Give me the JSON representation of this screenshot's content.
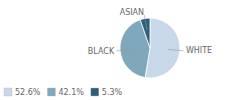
{
  "chart_data": {
    "type": "pie",
    "categories": [
      "WHITE",
      "BLACK",
      "ASIAN"
    ],
    "values": [
      52.6,
      42.1,
      5.3
    ],
    "value_labels": [
      "52.6%",
      "42.1%",
      "5.3%"
    ],
    "colors": [
      "#c8d8e8",
      "#7fa8bc",
      "#2c5f7a"
    ],
    "legend": "lower left"
  }
}
